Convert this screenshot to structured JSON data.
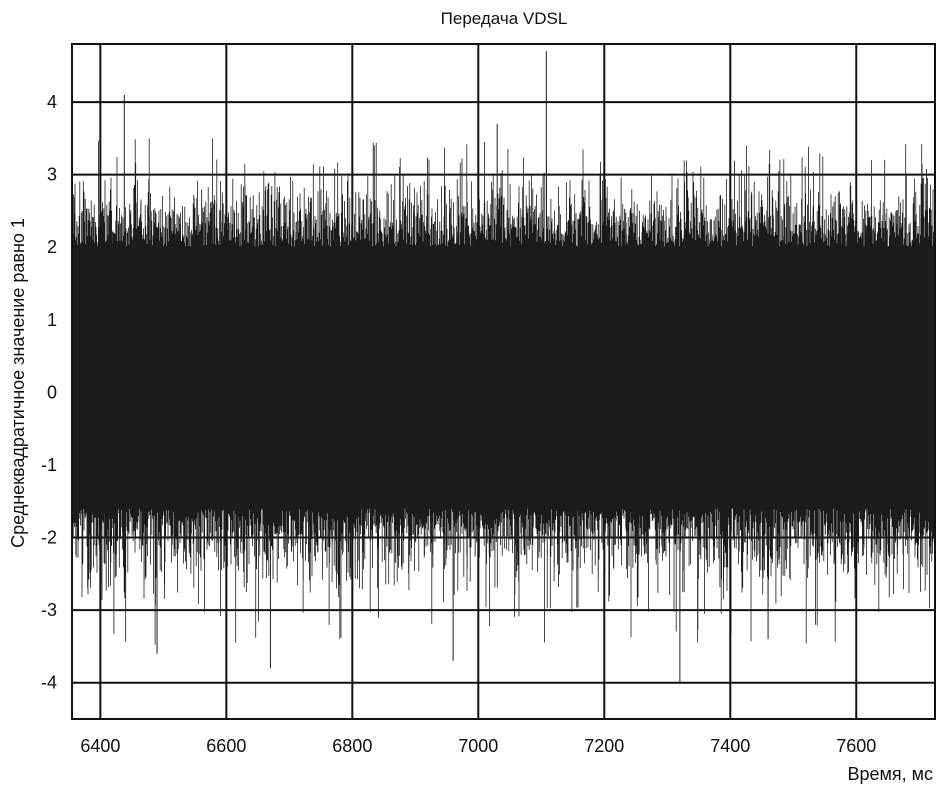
{
  "chart_data": {
    "type": "line",
    "title": "Передача VDSL",
    "xlabel": "Время, мс",
    "ylabel": "Среднеквадратичное значение равно 1",
    "xlim": [
      6355,
      7725
    ],
    "ylim": [
      -4.5,
      4.8
    ],
    "xticks": [
      6400,
      6600,
      6800,
      7000,
      7200,
      7400,
      7600
    ],
    "yticks": [
      -4,
      -3,
      -2,
      -1,
      0,
      1,
      2,
      3,
      4
    ],
    "grid": true,
    "series": [
      {
        "signal": "noise-like VDSL waveform, RMS 1",
        "envelope_typical": [
          -1.8,
          2.2
        ],
        "peaks": [
          {
            "x": 6438,
            "y": 4.1
          },
          {
            "x": 6490,
            "y": -3.6
          },
          {
            "x": 6670,
            "y": -3.8
          },
          {
            "x": 6960,
            "y": -3.7
          },
          {
            "x": 7030,
            "y": 3.7
          },
          {
            "x": 7108,
            "y": 4.7
          },
          {
            "x": 7320,
            "y": -4.0
          },
          {
            "x": 7460,
            "y": -3.4
          }
        ]
      }
    ]
  }
}
